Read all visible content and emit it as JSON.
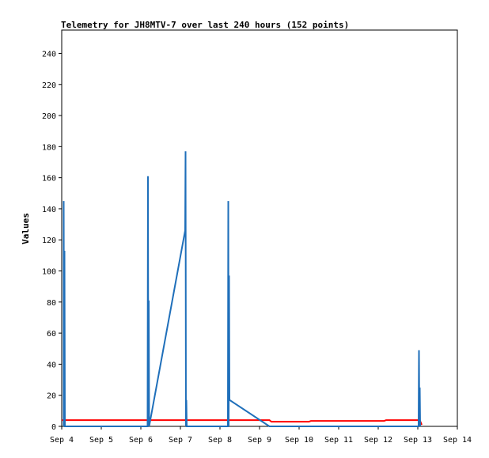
{
  "chart_data": {
    "type": "line",
    "title": "Telemetry for JH8MTV-7 over last 240 hours (152 points)",
    "xlabel": "",
    "ylabel": "Values",
    "x_ticks": [
      "Sep 4",
      "Sep 5",
      "Sep 6",
      "Sep 7",
      "Sep 8",
      "Sep 9",
      "Sep 10",
      "Sep 11",
      "Sep 12",
      "Sep 13",
      "Sep 14"
    ],
    "y_ticks": [
      0,
      20,
      40,
      60,
      80,
      100,
      120,
      140,
      160,
      180,
      200,
      220,
      240
    ],
    "xlim": [
      0,
      10
    ],
    "ylim": [
      0,
      255
    ],
    "grid": false,
    "series": [
      {
        "color": "#ff0000",
        "points": [
          [
            0,
            4
          ],
          [
            5.25,
            4
          ],
          [
            5.3,
            3
          ],
          [
            6.25,
            3
          ],
          [
            6.3,
            3.5
          ],
          [
            8.15,
            3.5
          ],
          [
            8.2,
            4
          ],
          [
            9.05,
            4
          ],
          [
            9.1,
            1
          ]
        ]
      },
      {
        "color": "#1f6fba",
        "points": [
          [
            0.05,
            0
          ],
          [
            0.05,
            145
          ],
          [
            0.06,
            0
          ],
          [
            0.07,
            113
          ],
          [
            0.08,
            0
          ],
          [
            2.17,
            0
          ],
          [
            2.18,
            161
          ],
          [
            2.19,
            0
          ],
          [
            2.2,
            81
          ],
          [
            2.21,
            0
          ],
          [
            3.12,
            126
          ],
          [
            3.13,
            177
          ],
          [
            3.14,
            0
          ],
          [
            3.15,
            17
          ],
          [
            3.16,
            0
          ],
          [
            4.2,
            0
          ],
          [
            4.21,
            145
          ],
          [
            4.22,
            0
          ],
          [
            4.23,
            97
          ],
          [
            4.24,
            17
          ],
          [
            5.25,
            0
          ],
          [
            9.02,
            0
          ],
          [
            9.03,
            49
          ],
          [
            9.04,
            0
          ],
          [
            9.05,
            25
          ],
          [
            9.06,
            0
          ]
        ]
      }
    ]
  }
}
